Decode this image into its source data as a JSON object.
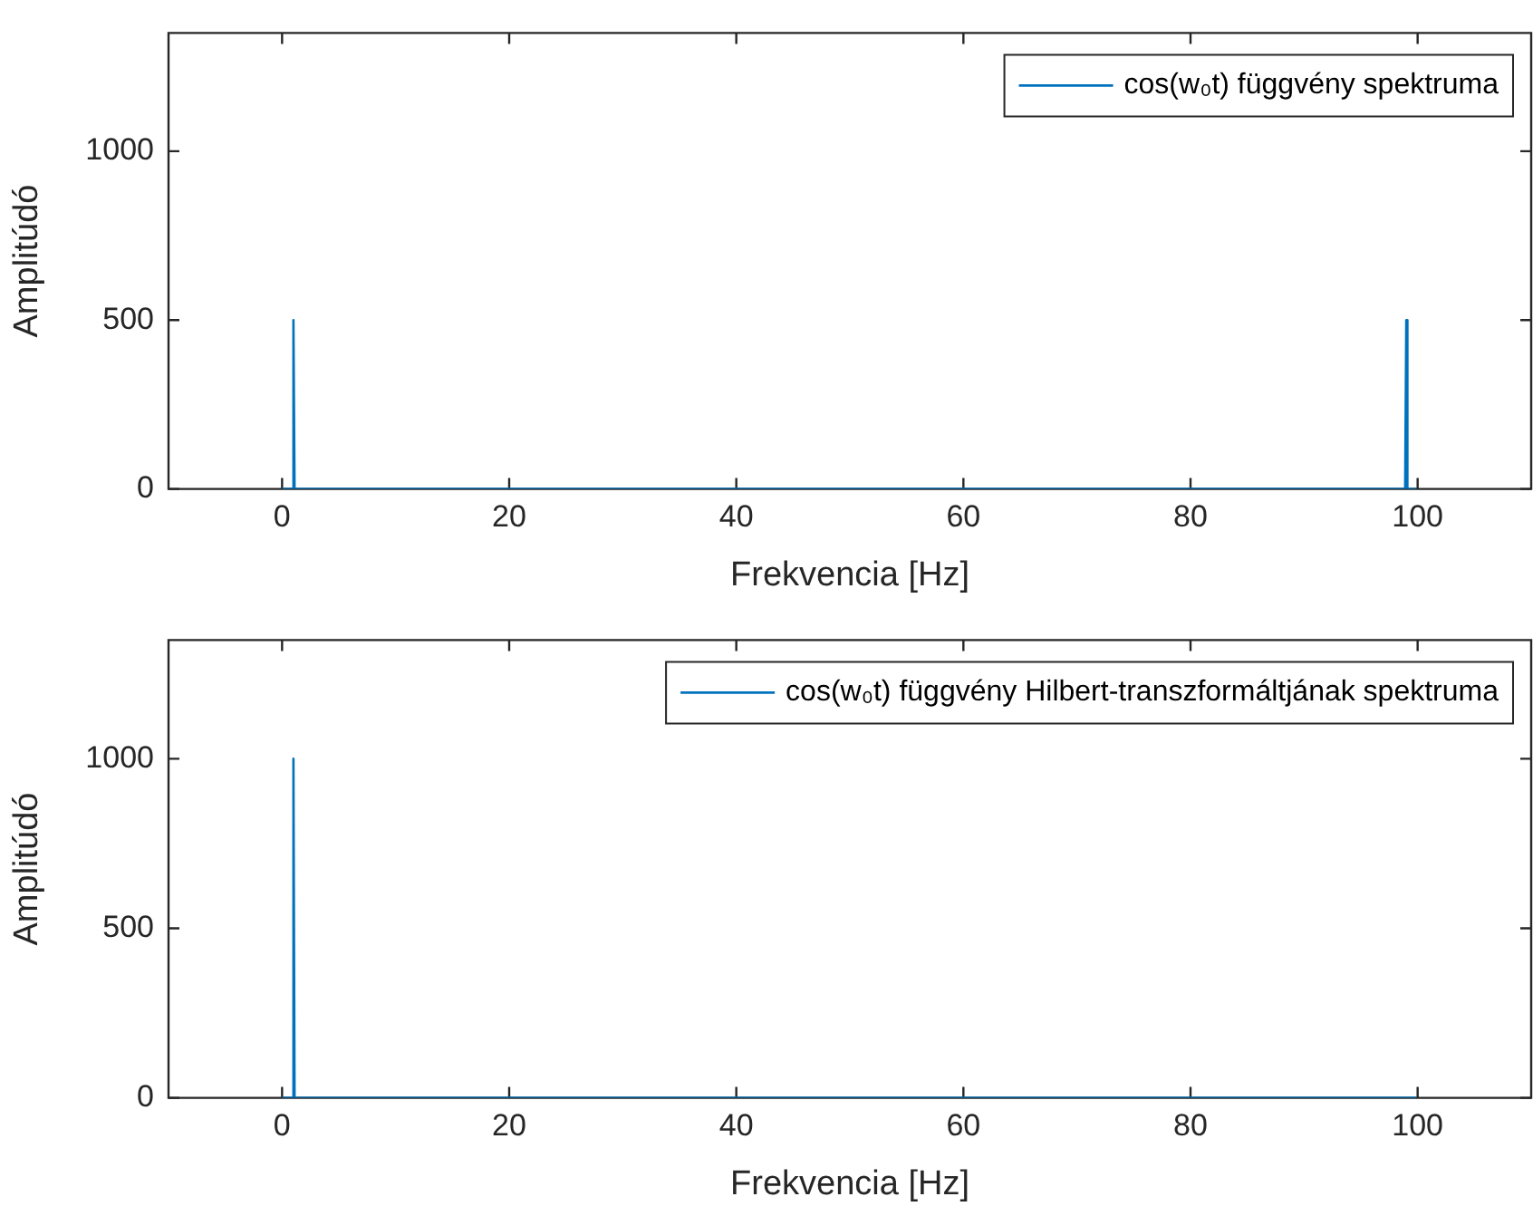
{
  "chart_data": [
    {
      "type": "line",
      "xlabel": "Frekvencia [Hz]",
      "ylabel": "Amplitúdó",
      "xlim": [
        -10,
        110
      ],
      "xticks": [
        0,
        20,
        40,
        60,
        80,
        100
      ],
      "ylim": [
        0,
        1350
      ],
      "yticks": [
        0,
        500,
        1000
      ],
      "legend": "top right",
      "marker": "none",
      "series": [
        {
          "name": "cos(w₀t) függvény spektruma",
          "color": "#0072bd",
          "x": [
            0,
            0.9,
            1,
            1.1,
            98.9,
            99,
            99.1,
            99.9
          ],
          "values": [
            0,
            0,
            500,
            0,
            0,
            500,
            0,
            0
          ]
        }
      ]
    },
    {
      "type": "line",
      "xlabel": "Frekvencia [Hz]",
      "ylabel": "Amplitúdó",
      "xlim": [
        -10,
        110
      ],
      "xticks": [
        0,
        20,
        40,
        60,
        80,
        100
      ],
      "ylim": [
        0,
        1350
      ],
      "yticks": [
        0,
        500,
        1000
      ],
      "legend": "top right",
      "marker": "none",
      "series": [
        {
          "name": "cos(w₀t) függvény Hilbert-transzformáltjának spektruma",
          "color": "#0072bd",
          "x": [
            0,
            0.9,
            1,
            1.1,
            99.9
          ],
          "values": [
            0,
            0,
            1000,
            0,
            0
          ]
        }
      ]
    }
  ]
}
